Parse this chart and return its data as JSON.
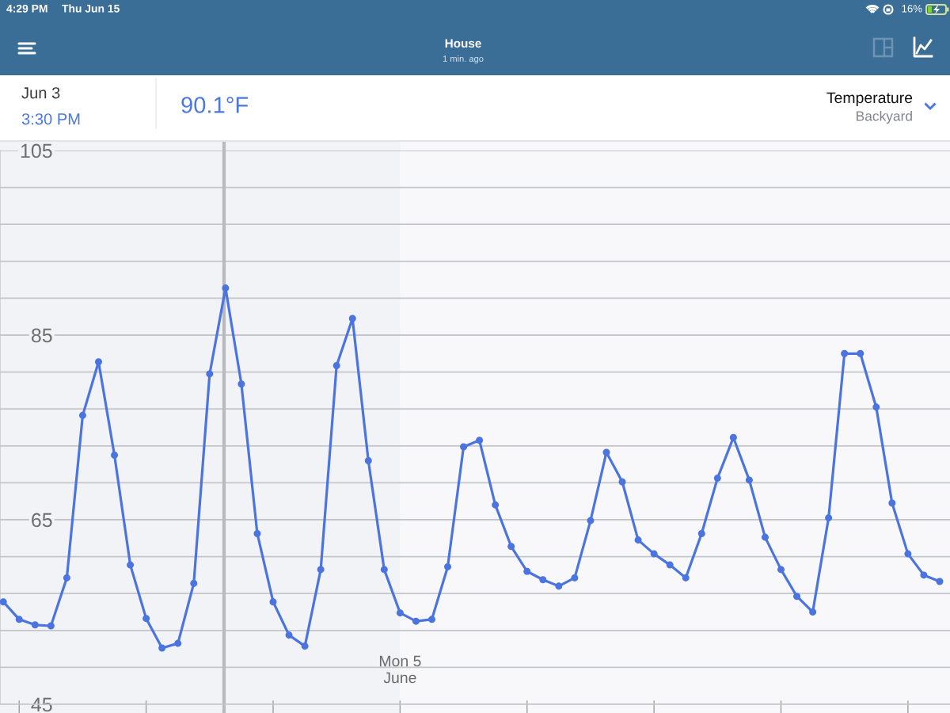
{
  "chart_data": {
    "type": "line",
    "title": "House",
    "subtitle": "1 min. ago",
    "annotations": [
      "4:29 PM",
      "Thu Jun 15",
      "16%",
      "Jun 3",
      "3:30 PM",
      "90.1°F",
      "Temperature",
      "Backyard"
    ],
    "categories": [
      null,
      null,
      null,
      null,
      null,
      null,
      null,
      null,
      null,
      null,
      null,
      null,
      null,
      null,
      null,
      null,
      null,
      null,
      null,
      null,
      null,
      null,
      null,
      null,
      null,
      "Mon 5\nJune",
      null,
      null,
      null,
      null,
      null,
      null,
      null,
      null,
      null,
      null,
      null,
      null,
      null,
      null,
      null,
      null,
      null,
      null,
      null,
      null,
      null,
      null,
      null,
      null,
      null,
      null,
      null,
      null,
      null,
      null,
      null,
      null,
      null,
      null
    ],
    "values": [
      56.1,
      54.2,
      53.6,
      53.5,
      58.7,
      76.3,
      82.1,
      72.0,
      60.1,
      54.3,
      51.1,
      51.6,
      58.1,
      80.8,
      90.1,
      79.7,
      63.5,
      56.1,
      52.5,
      51.3,
      59.6,
      81.7,
      86.8,
      71.4,
      59.6,
      54.9,
      54.0,
      54.2,
      59.9,
      72.9,
      73.6,
      66.6,
      62.1,
      59.4,
      58.5,
      57.8,
      58.7,
      64.9,
      72.3,
      69.1,
      62.8,
      61.3,
      60.1,
      58.7,
      63.5,
      69.5,
      73.9,
      69.3,
      63.1,
      59.6,
      56.7,
      55.0,
      65.2,
      83.0,
      83.0,
      77.2,
      66.8,
      61.3,
      59.0,
      58.3
    ],
    "color": "#4b74e0",
    "ylim": [
      45,
      105
    ],
    "yticks": [
      45,
      {
        "value": 49,
        "label": null
      },
      {
        "value": 53,
        "label": null
      },
      {
        "value": 57,
        "label": null
      },
      {
        "value": 61,
        "label": null
      },
      65,
      {
        "value": 69,
        "label": null
      },
      {
        "value": 73,
        "label": null
      },
      {
        "value": 77,
        "label": null
      },
      {
        "value": 81,
        "label": null
      },
      85,
      {
        "value": 89,
        "label": null
      },
      {
        "value": 93,
        "label": null
      },
      {
        "value": 97,
        "label": null
      },
      {
        "value": 101,
        "label": null
      },
      105
    ],
    "grid": "y",
    "marker": "circle",
    "line_style": "solid"
  }
}
